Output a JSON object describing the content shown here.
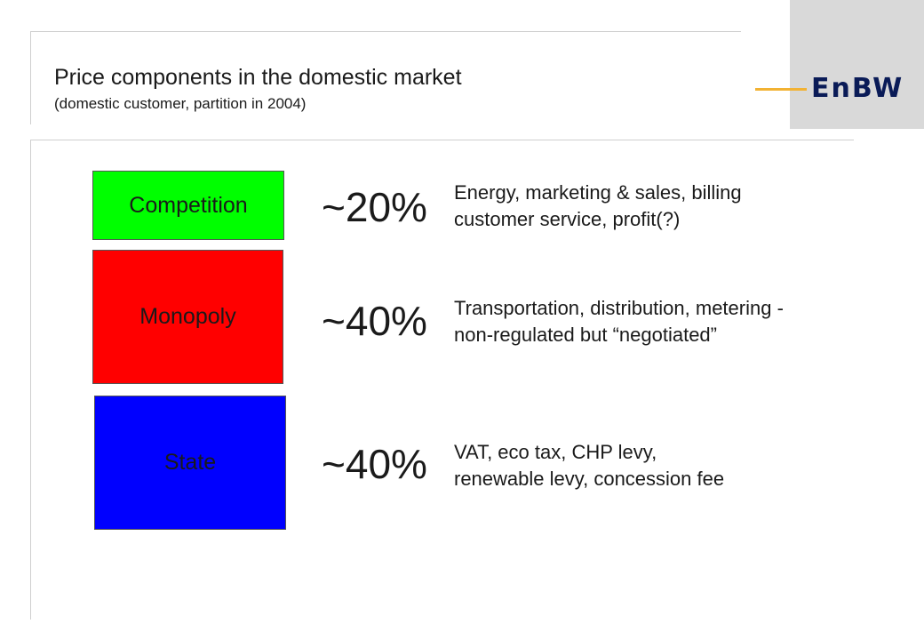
{
  "header": {
    "title": "Price components in the domestic market",
    "subtitle": "(domestic customer, partition in 2004)"
  },
  "logo": {
    "text": "EnBW",
    "accent_color": "#f2b233",
    "text_color": "#0a1b57",
    "panel_color": "#d9d9d9"
  },
  "components": [
    {
      "label": "Competition",
      "color": "#00ff00",
      "share": "~20%",
      "description": [
        "Energy, marketing & sales, billing",
        "customer service, profit(?)"
      ]
    },
    {
      "label": "Monopoly",
      "color": "#ff0000",
      "share": "~40%",
      "description": [
        "Transportation, distribution, metering -",
        "non-regulated but “negotiated”"
      ]
    },
    {
      "label": "State",
      "color": "#0000ff",
      "share": "~40%",
      "description": [
        "VAT, eco tax, CHP levy,",
        "renewable levy, concession fee"
      ]
    }
  ]
}
